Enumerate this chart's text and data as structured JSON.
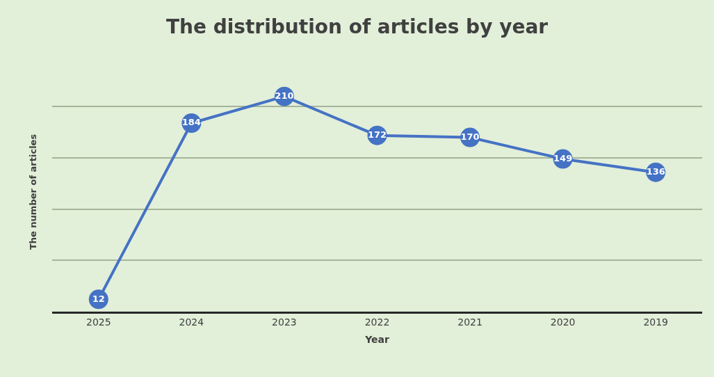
{
  "chart_data": {
    "type": "line",
    "title": "The distribution of articles by year",
    "xlabel": "Year",
    "ylabel": "The number of articles",
    "categories": [
      "2025",
      "2024",
      "2023",
      "2022",
      "2021",
      "2020",
      "2019"
    ],
    "values": [
      12,
      184,
      210,
      172,
      170,
      149,
      136
    ],
    "color": "#4472c4",
    "marker": "circle",
    "line_style": "solid",
    "data_labels": true,
    "grid": "y",
    "legend": false
  }
}
